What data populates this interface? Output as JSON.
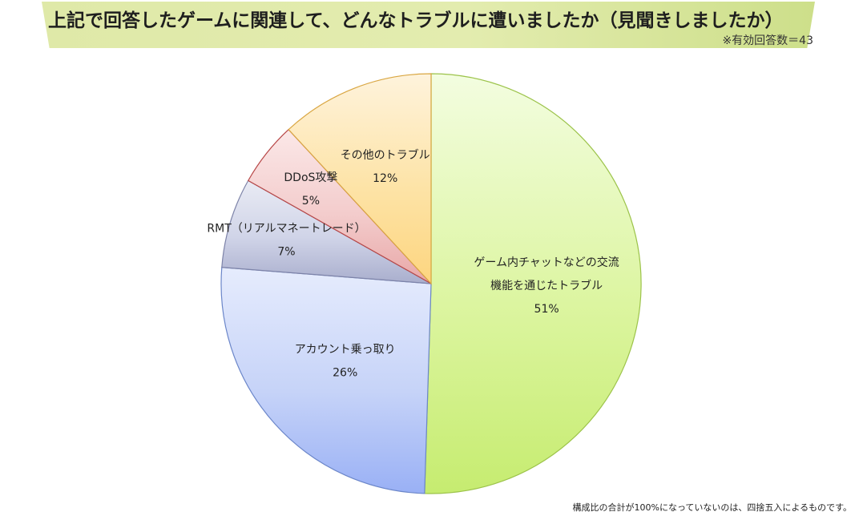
{
  "header": {
    "title": "上記で回答したゲームに関連して、どんなトラブルに遭いましたか（見聞きしましたか）",
    "respondents": "※有効回答数＝43"
  },
  "footer": {
    "note": "構成比の合計が100%になっていないのは、四捨五入によるものです。"
  },
  "chart_data": {
    "type": "pie",
    "title": "上記で回答したゲームに関連して、どんなトラブルに遭いましたか（見聞きしましたか）",
    "start": "12-o'clock",
    "direction": "clockwise",
    "slices": [
      {
        "label_lines": [
          "ゲーム内チャットなどの交流",
          "機能を通じたトラブル"
        ],
        "value": 51,
        "value_label": "51%",
        "color": "#dcf5a0",
        "color_light": "#f3fde0",
        "color_dark": "#c6ec70",
        "border": "#9cc34a"
      },
      {
        "label_lines": [
          "アカウント乗っ取り"
        ],
        "value": 26,
        "value_label": "26%",
        "color": "#c6d3f8",
        "color_light": "#e6ecfd",
        "color_dark": "#99b0f5",
        "border": "#6b86c9"
      },
      {
        "label_lines": [
          "RMT（リアルマネートレード）"
        ],
        "value": 7,
        "value_label": "7%",
        "color": "#d0d4e8",
        "color_light": "#e9ebf4",
        "color_dark": "#a9aecd",
        "border": "#7d83a8"
      },
      {
        "label_lines": [
          "DDoS攻撃"
        ],
        "value": 5,
        "value_label": "5%",
        "color": "#f3cccc",
        "color_light": "#fbe8e8",
        "color_dark": "#e8a7a7",
        "border": "#b74646"
      },
      {
        "label_lines": [
          "その他のトラブル"
        ],
        "value": 12,
        "value_label": "12%",
        "color": "#fde3a6",
        "color_light": "#fef3dc",
        "color_dark": "#fdd57f",
        "border": "#d9a642"
      }
    ]
  }
}
